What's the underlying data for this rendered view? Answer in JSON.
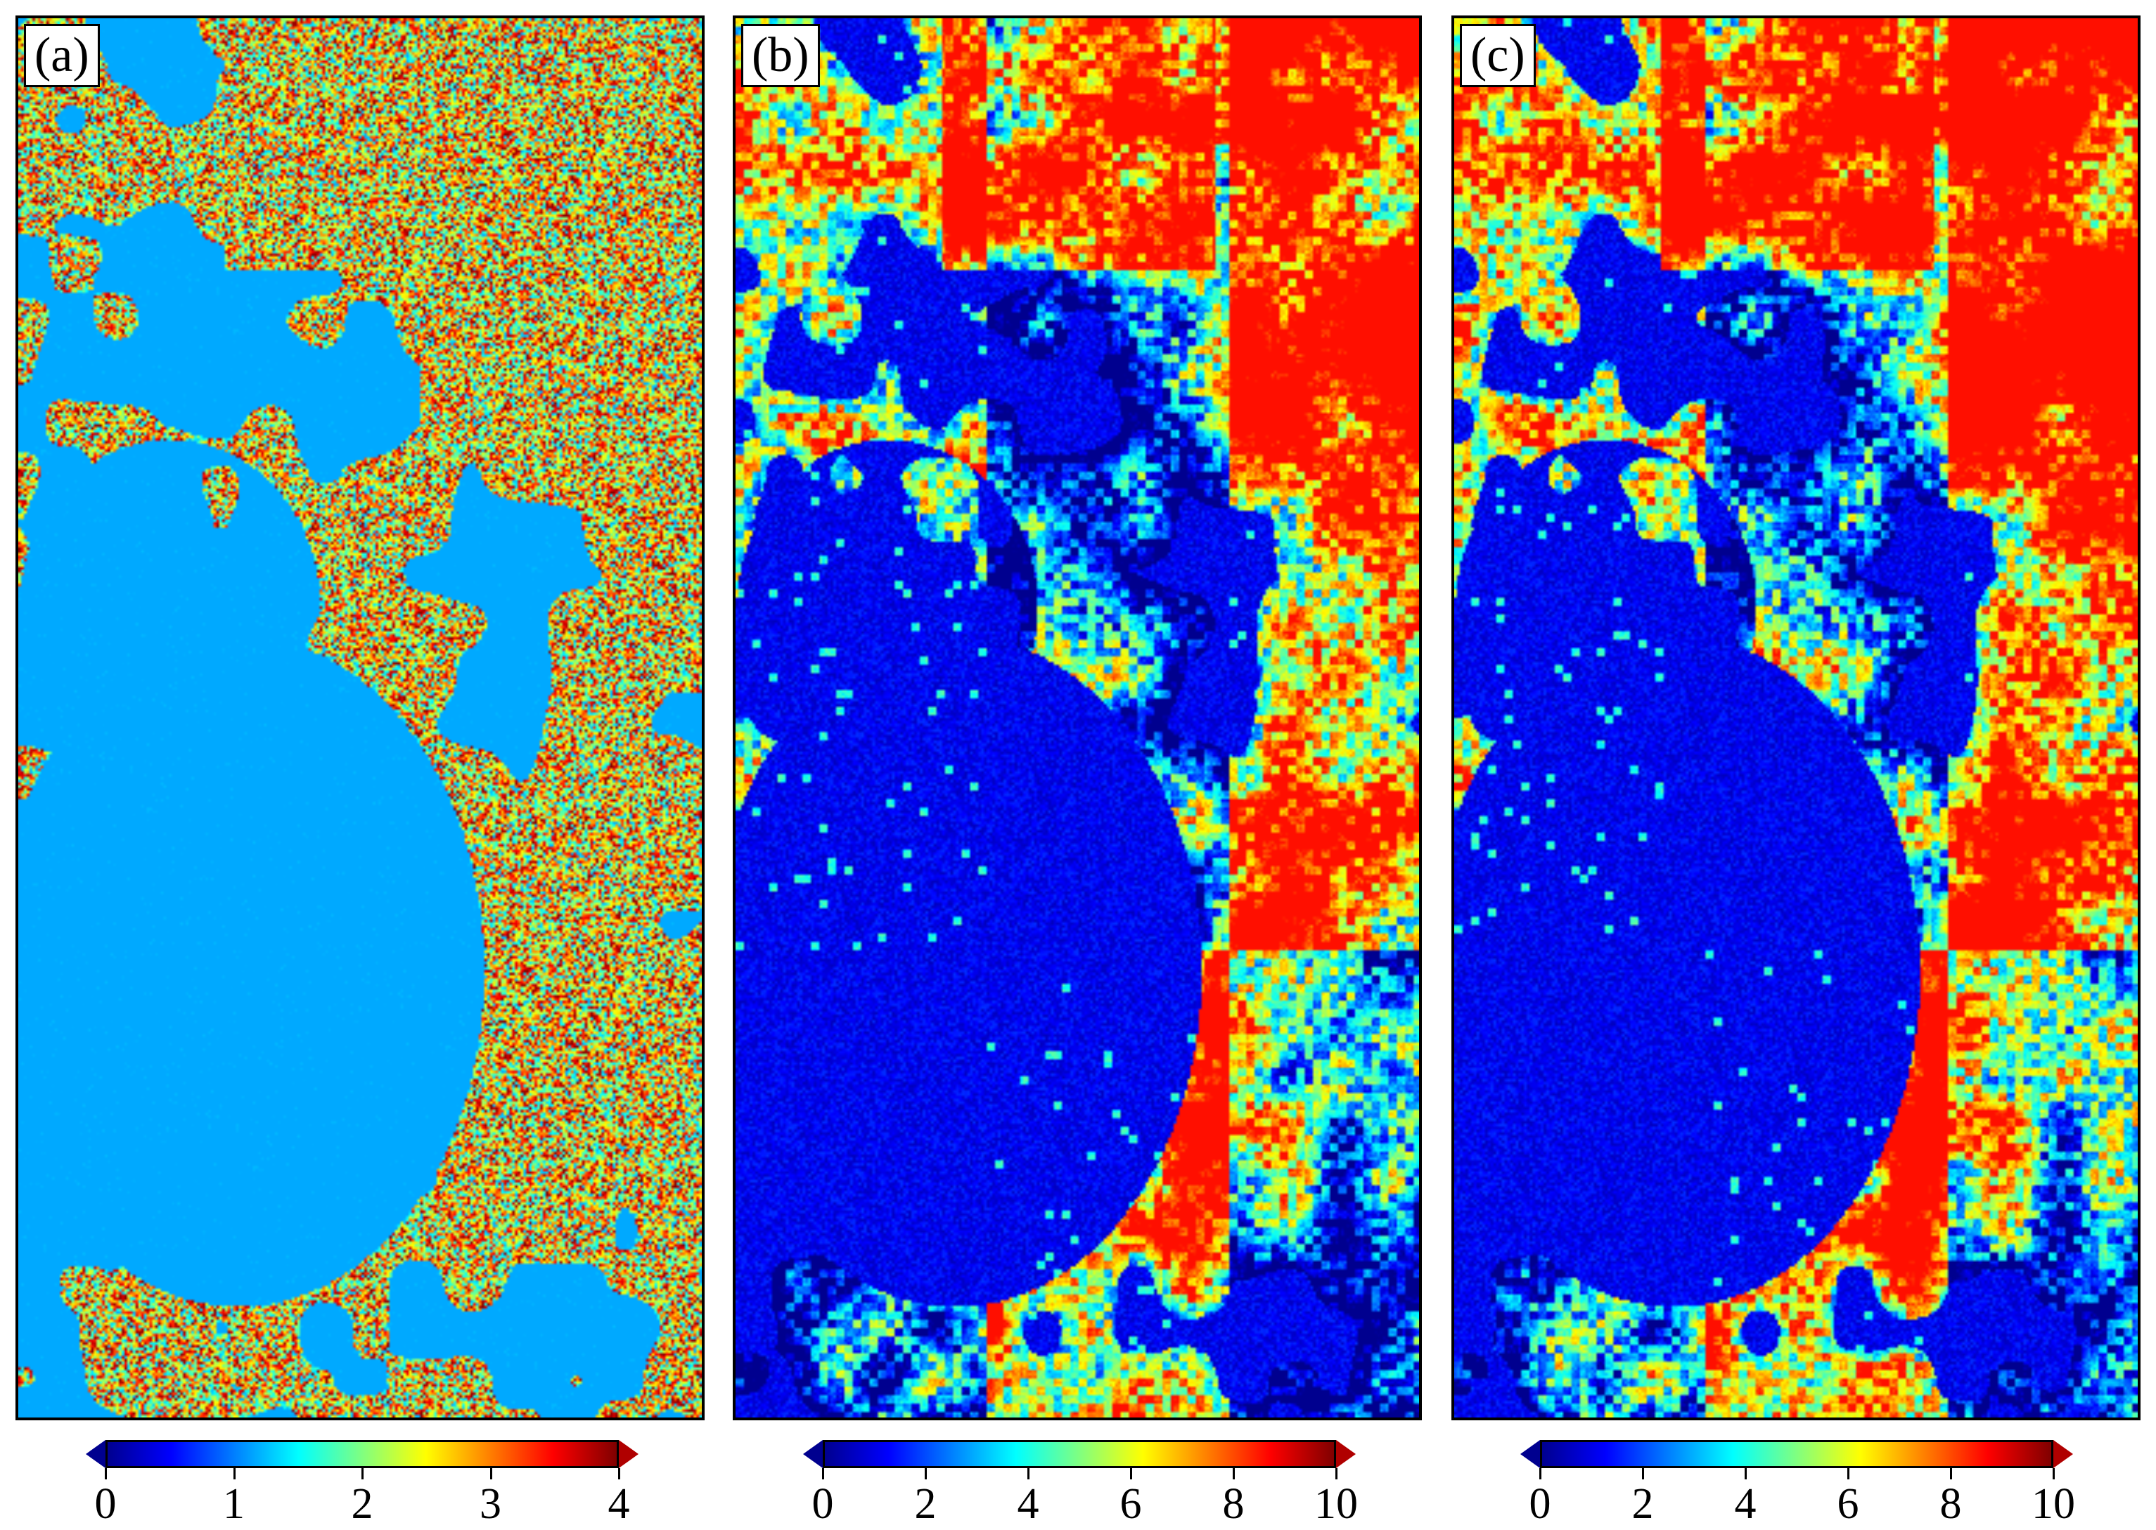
{
  "panels": [
    {
      "label": "(a)",
      "style": "sparse",
      "colorbar": {
        "ticks": [
          "0",
          "1",
          "2",
          "3",
          "4"
        ],
        "min": 0,
        "max": 4
      }
    },
    {
      "label": "(b)",
      "style": "blocky",
      "colorbar": {
        "ticks": [
          "0",
          "2",
          "4",
          "6",
          "8",
          "10"
        ],
        "min": 0,
        "max": 10
      }
    },
    {
      "label": "(c)",
      "style": "blocky-strong",
      "colorbar": {
        "ticks": [
          "0",
          "2",
          "4",
          "6",
          "8",
          "10"
        ],
        "min": 0,
        "max": 10
      }
    }
  ],
  "colormap": [
    "#00008f",
    "#0000ff",
    "#0080ff",
    "#00ffff",
    "#80ff80",
    "#ffff00",
    "#ff8000",
    "#ff0000",
    "#800000"
  ]
}
